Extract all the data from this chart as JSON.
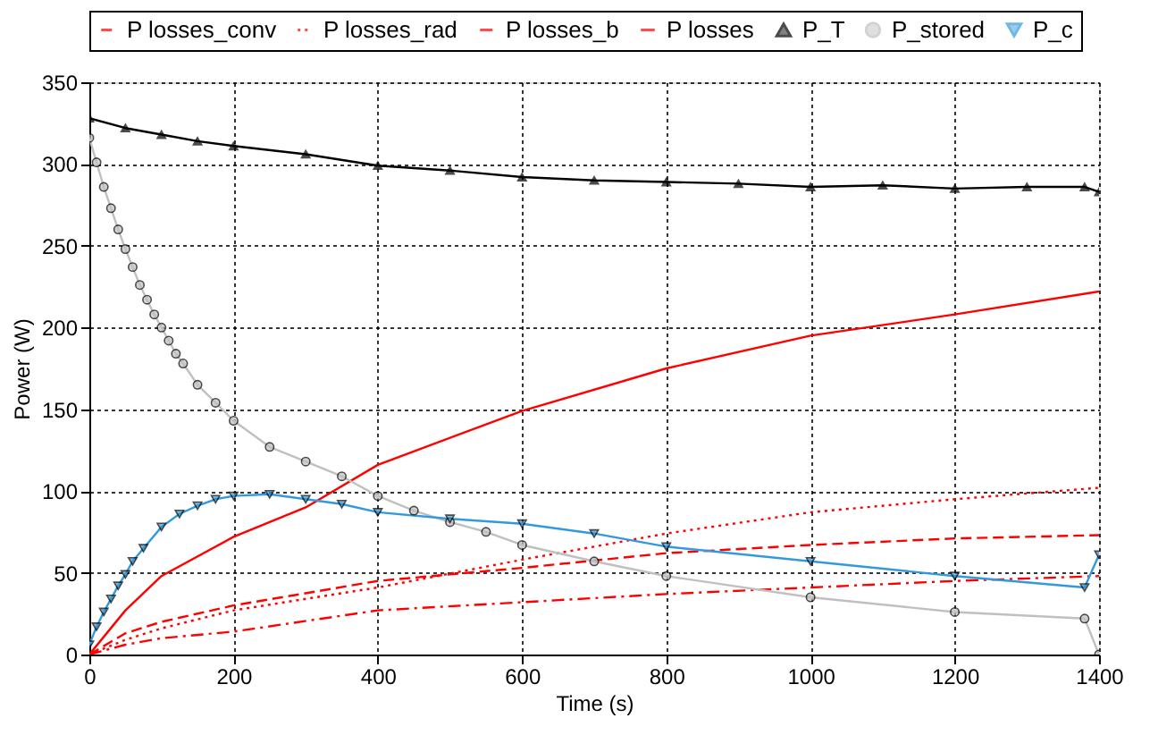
{
  "chart_data": {
    "type": "line",
    "xlabel": "Time (s)",
    "ylabel": "Power (W)",
    "xlim": [
      0,
      1400
    ],
    "xticks": [
      0,
      200,
      400,
      600,
      800,
      1000,
      1200,
      1400
    ],
    "ylim": [
      0,
      350
    ],
    "yticks": [
      0,
      50,
      100,
      150,
      200,
      250,
      300,
      350
    ],
    "grid": true,
    "legend": "top",
    "series": [
      {
        "name": "P losses_conv",
        "color": "#ff0000",
        "line_style": "dashed",
        "marker": "none",
        "x": [
          0,
          50,
          100,
          200,
          400,
          600,
          800,
          1000,
          1200,
          1400
        ],
        "values": [
          0,
          13,
          20,
          30,
          45,
          53,
          62,
          67,
          71,
          73
        ]
      },
      {
        "name": "P losses_rad",
        "color": "#ff0000",
        "line_style": "dotted",
        "marker": "none",
        "x": [
          0,
          50,
          100,
          200,
          400,
          600,
          800,
          1000,
          1200,
          1400
        ],
        "values": [
          0,
          9,
          16,
          27,
          41,
          58,
          74,
          87,
          95,
          102
        ]
      },
      {
        "name": "P losses_b",
        "color": "#ff0000",
        "line_style": "dashdot",
        "marker": "none",
        "x": [
          0,
          50,
          100,
          200,
          400,
          600,
          800,
          1000,
          1200,
          1400
        ],
        "values": [
          0,
          6,
          10,
          14,
          27,
          32,
          37,
          41,
          45,
          48
        ]
      },
      {
        "name": "P losses",
        "color": "#ff0000",
        "line_style": "solid",
        "marker": "none",
        "x": [
          0,
          50,
          100,
          200,
          300,
          400,
          600,
          800,
          1000,
          1200,
          1400
        ],
        "values": [
          0,
          27,
          48,
          72,
          90,
          116,
          149,
          175,
          195,
          208,
          222
        ]
      },
      {
        "name": "P_T",
        "color": "#000000",
        "line_style": "solid",
        "marker": "triangle",
        "x": [
          0,
          50,
          100,
          150,
          200,
          300,
          400,
          500,
          600,
          700,
          800,
          900,
          1000,
          1100,
          1200,
          1300,
          1380,
          1400
        ],
        "values": [
          328,
          322,
          318,
          314,
          311,
          306,
          299,
          296,
          292,
          290,
          289,
          288,
          286,
          287,
          285,
          286,
          286,
          283
        ]
      },
      {
        "name": "P_stored",
        "color": "#c0c0c0",
        "line_style": "solid",
        "marker": "circle",
        "x": [
          0,
          10,
          20,
          30,
          40,
          50,
          60,
          70,
          80,
          90,
          100,
          110,
          120,
          130,
          150,
          175,
          200,
          250,
          300,
          350,
          400,
          450,
          500,
          550,
          600,
          700,
          800,
          1000,
          1200,
          1380,
          1400
        ],
        "values": [
          316,
          301,
          286,
          273,
          260,
          248,
          237,
          226,
          217,
          208,
          200,
          192,
          184,
          178,
          165,
          154,
          143,
          127,
          118,
          109,
          97,
          88,
          81,
          75,
          67,
          57,
          48,
          35,
          26,
          22,
          0
        ]
      },
      {
        "name": "P_c",
        "color": "#3399dd",
        "line_style": "solid",
        "marker": "triangle-down",
        "x": [
          0,
          10,
          20,
          30,
          40,
          50,
          60,
          75,
          100,
          125,
          150,
          175,
          200,
          250,
          300,
          350,
          400,
          500,
          600,
          700,
          800,
          1000,
          1200,
          1380,
          1400
        ],
        "values": [
          6,
          17,
          26,
          34,
          42,
          49,
          57,
          65,
          78,
          86,
          91,
          95,
          97,
          98,
          95,
          92,
          87,
          83,
          80,
          74,
          66,
          57,
          48,
          41,
          61
        ]
      }
    ]
  }
}
